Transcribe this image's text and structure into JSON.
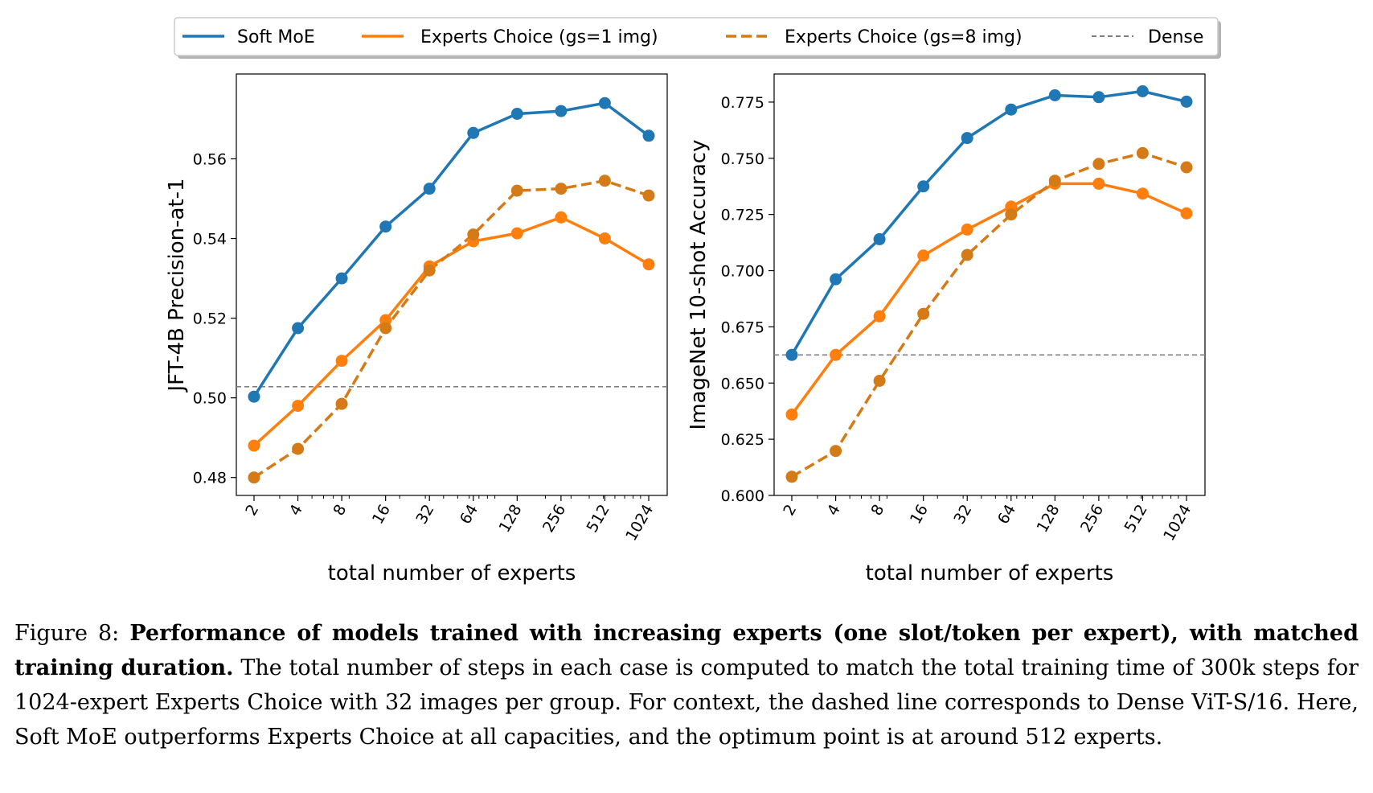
{
  "legend": {
    "entries": [
      {
        "label": "Soft MoE",
        "color": "#1f77b4",
        "dash": "solid"
      },
      {
        "label": "Experts Choice (gs=1 img)",
        "color": "#ff7f0e",
        "dash": "solid"
      },
      {
        "label": "Experts Choice (gs=8 img)",
        "color": "#d47a16",
        "dash": "dashed"
      },
      {
        "label": "Dense",
        "color": "#7f7f7f",
        "dash": "dashed"
      }
    ],
    "placement": "top-center"
  },
  "chart_data": [
    {
      "type": "line",
      "xlabel": "total number of experts",
      "ylabel": "JFT-4B Precision-at-1",
      "x_scale": "log2",
      "x": [
        2,
        4,
        8,
        16,
        32,
        64,
        128,
        256,
        512,
        1024
      ],
      "x_tick_labels": [
        "2",
        "4",
        "8",
        "16",
        "32",
        "64",
        "128",
        "256",
        "512",
        "1024"
      ],
      "ylim": [
        0.4755,
        0.5813
      ],
      "y_ticks": [
        0.48,
        0.5,
        0.52,
        0.54,
        0.56
      ],
      "y_tick_labels": [
        "0.48",
        "0.50",
        "0.52",
        "0.54",
        "0.56"
      ],
      "grid": false,
      "series": [
        {
          "name": "Soft MoE",
          "values": [
            0.5003,
            0.5175,
            0.53,
            0.543,
            0.5525,
            0.5665,
            0.5713,
            0.572,
            0.574,
            0.5658
          ]
        },
        {
          "name": "Experts Choice (gs=1 img)",
          "values": [
            0.488,
            0.498,
            0.5093,
            0.5195,
            0.533,
            0.5393,
            0.5413,
            0.5453,
            0.54,
            0.5335
          ]
        },
        {
          "name": "Experts Choice (gs=8 img)",
          "values": [
            0.48,
            0.4872,
            0.4985,
            0.5175,
            0.532,
            0.541,
            0.552,
            0.5525,
            0.5545,
            0.5508
          ]
        }
      ],
      "dense_baseline": 0.5028
    },
    {
      "type": "line",
      "xlabel": "total number of experts",
      "ylabel": "ImageNet 10-shot Accuracy",
      "x_scale": "log2",
      "x": [
        2,
        4,
        8,
        16,
        32,
        64,
        128,
        256,
        512,
        1024
      ],
      "x_tick_labels": [
        "2",
        "4",
        "8",
        "16",
        "32",
        "64",
        "128",
        "256",
        "512",
        "1024"
      ],
      "ylim": [
        0.6,
        0.7875
      ],
      "y_ticks": [
        0.6,
        0.625,
        0.65,
        0.675,
        0.7,
        0.725,
        0.75,
        0.775
      ],
      "y_tick_labels": [
        "0.600",
        "0.625",
        "0.650",
        "0.675",
        "0.700",
        "0.725",
        "0.750",
        "0.775"
      ],
      "grid": false,
      "series": [
        {
          "name": "Soft MoE",
          "values": [
            0.6625,
            0.6962,
            0.714,
            0.7375,
            0.759,
            0.7717,
            0.778,
            0.7772,
            0.7798,
            0.7752
          ]
        },
        {
          "name": "Experts Choice (gs=1 img)",
          "values": [
            0.636,
            0.6625,
            0.6797,
            0.7067,
            0.7183,
            0.7285,
            0.7387,
            0.7387,
            0.7343,
            0.7255
          ]
        },
        {
          "name": "Experts Choice (gs=8 img)",
          "values": [
            0.6083,
            0.6198,
            0.651,
            0.6808,
            0.707,
            0.725,
            0.74,
            0.7475,
            0.7523,
            0.746
          ]
        }
      ],
      "dense_baseline": 0.6625
    }
  ],
  "caption": {
    "label": "Figure 8:",
    "bold": "Performance of models trained with increasing experts (one slot/token per expert), with matched training duration.",
    "text": "The total number of steps in each case is computed to match the total training time of 300k steps for 1024-expert Experts Choice with 32 images per group. For context, the dashed line corresponds to Dense ViT-S/16. Here, Soft MoE outperforms Experts Choice at all capacities, and the optimum point is at around 512 experts."
  }
}
